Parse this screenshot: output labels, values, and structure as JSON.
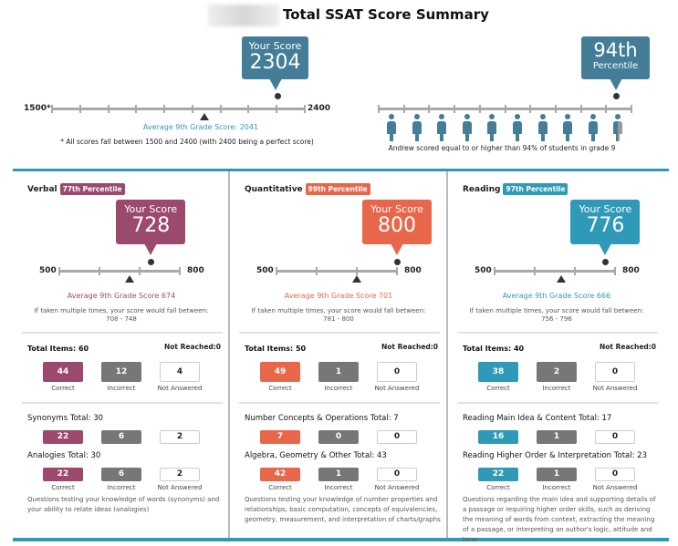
{
  "header": {
    "title": "Total SSAT Score Summary"
  },
  "colors": {
    "total": "#437d98",
    "verbal": "#9b4a6e",
    "quantitative": "#e8674a",
    "reading": "#2e9ab8",
    "incorrect": "#777777",
    "accent_line": "#2e9ab8"
  },
  "total": {
    "your_score_label": "Your Score",
    "score": 2304,
    "min": 1500,
    "max": 2400,
    "min_label": "1500*",
    "max_label": "2400",
    "average_label": "Average 9th Grade Score: 2041",
    "average": 2041,
    "footnote": "* All scores fall between 1500 and 2400 (with 2400 being a perfect score)"
  },
  "percentile": {
    "value_label": "94th",
    "sub_label": "Percentile",
    "value": 94,
    "caption": "Andrew scored equal to or higher than 94% of students in grade 9"
  },
  "sections": [
    {
      "key": "verbal",
      "name": "Verbal",
      "percentile": "77th Percentile",
      "your_score_label": "Your Score",
      "score": 728,
      "average": 674,
      "min": 500,
      "max": 800,
      "min_label": "500",
      "max_label": "800",
      "average_label": "Average 9th Grade Score 674",
      "range_intro": "If taken multiple times, your score would fall between:",
      "range": "708 - 748",
      "total_items": "Total Items: 60",
      "not_reached": "Not Reached:0",
      "totals": {
        "correct": "44",
        "incorrect": "12",
        "not_answered": "4"
      },
      "labels": {
        "correct": "Correct",
        "incorrect": "Incorrect",
        "not_answered": "Not Answered"
      },
      "subsections": [
        {
          "title": "Synonyms Total: 30",
          "correct": "22",
          "incorrect": "6",
          "not_answered": "2"
        },
        {
          "title": "Analogies Total: 30",
          "correct": "22",
          "incorrect": "6",
          "not_answered": "2"
        }
      ],
      "description": "Questions testing your knowledge of words (synonyms) and your ability to relate ideas (analogies)"
    },
    {
      "key": "quantitative",
      "name": "Quantitative",
      "percentile": "99th Percentile",
      "your_score_label": "Your Score",
      "score": 800,
      "average": 701,
      "min": 500,
      "max": 800,
      "min_label": "500",
      "max_label": "800",
      "average_label": "Average 9th Grade Score 701",
      "range_intro": "If taken multiple times, your score would fall between:",
      "range": "781 - 800",
      "total_items": "Total Items: 50",
      "not_reached": "Not Reached:0",
      "totals": {
        "correct": "49",
        "incorrect": "1",
        "not_answered": "0"
      },
      "labels": {
        "correct": "Correct",
        "incorrect": "Incorrect",
        "not_answered": "Not Answered"
      },
      "subsections": [
        {
          "title": "Number Concepts & Operations Total: 7",
          "correct": "7",
          "incorrect": "0",
          "not_answered": "0"
        },
        {
          "title": "Algebra, Geometry & Other Total: 43",
          "correct": "42",
          "incorrect": "1",
          "not_answered": "0"
        }
      ],
      "description": "Questions testing your knowledge of number properties and relationships, basic computation, concepts of equivalencies, geometry, measurement, and interpretation of charts/graphs"
    },
    {
      "key": "reading",
      "name": "Reading",
      "percentile": "97th Percentile",
      "your_score_label": "Your Score",
      "score": 776,
      "average": 666,
      "min": 500,
      "max": 800,
      "min_label": "500",
      "max_label": "800",
      "average_label": "Average 9th Grade Score 666",
      "range_intro": "If taken multiple times, your score would fall between:",
      "range": "756 - 796",
      "total_items": "Total Items: 40",
      "not_reached": "Not Reached:0",
      "totals": {
        "correct": "38",
        "incorrect": "2",
        "not_answered": "0"
      },
      "labels": {
        "correct": "Correct",
        "incorrect": "Incorrect",
        "not_answered": "Not Answered"
      },
      "subsections": [
        {
          "title": "Reading Main Idea & Content Total: 17",
          "correct": "16",
          "incorrect": "1",
          "not_answered": "0"
        },
        {
          "title": "Reading Higher Order & Interpretation Total: 23",
          "correct": "22",
          "incorrect": "1",
          "not_answered": "0"
        }
      ],
      "description": "Questions regarding the main idea and supporting details of a passage or requiring higher order skills, such as deriving the meaning of words from context, extracting the meaning of a passage, or interpreting an author's logic, attitude and tone"
    }
  ]
}
